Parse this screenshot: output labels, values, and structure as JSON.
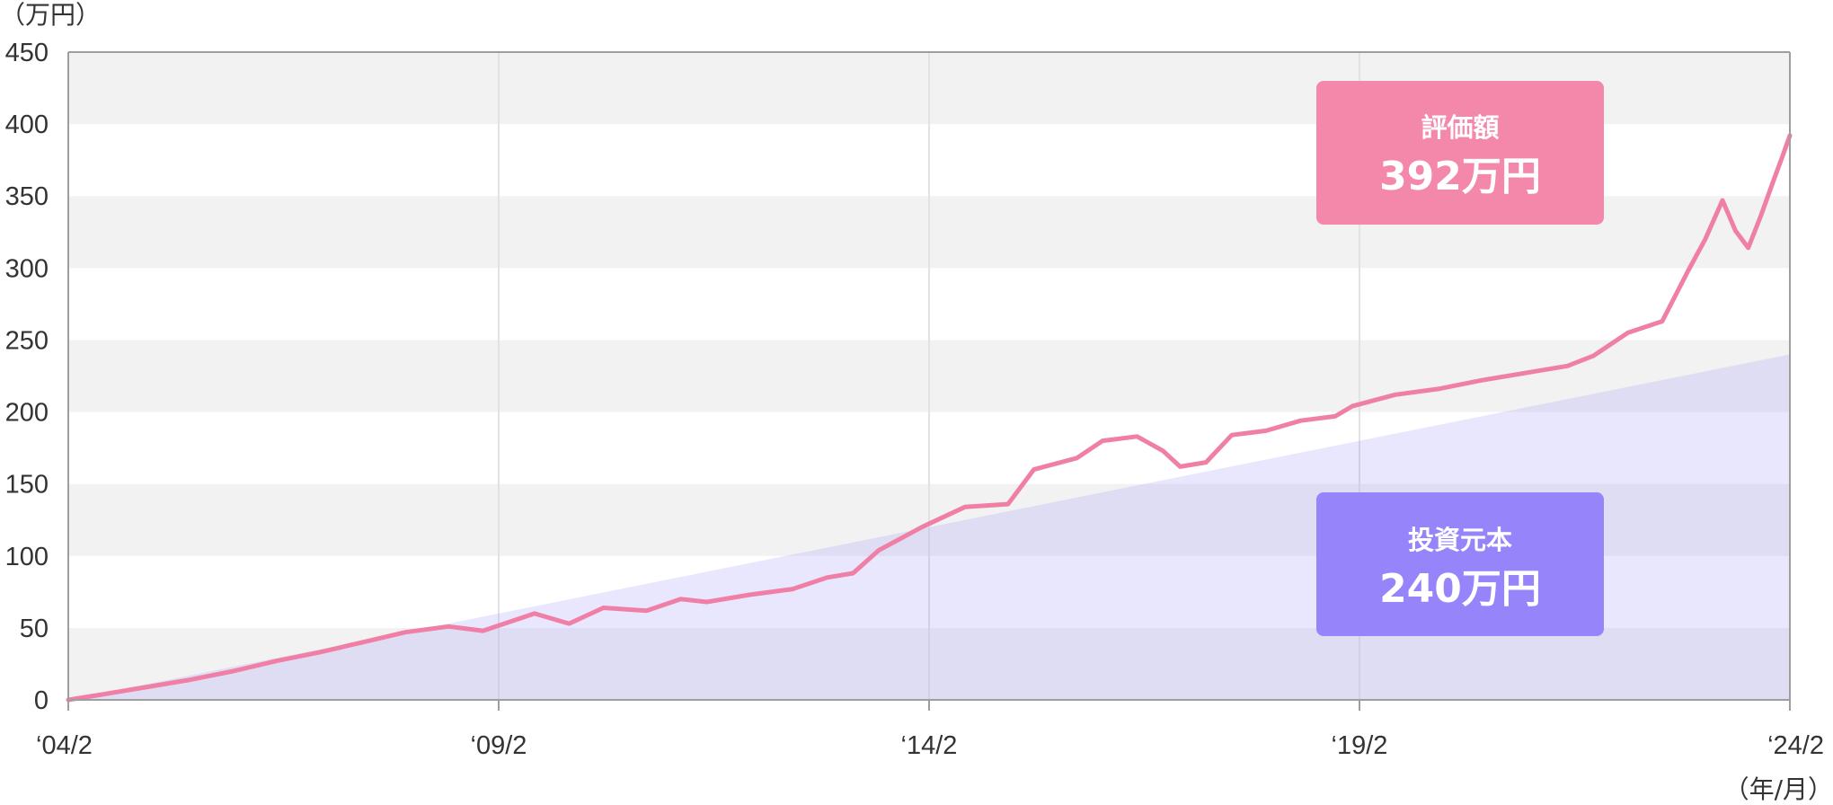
{
  "chart_data": {
    "type": "area",
    "y_unit_label": "（万円）",
    "x_unit_label": "（年/月）",
    "x_tick_labels": [
      "‘04/2",
      "‘09/2",
      "‘14/2",
      "‘19/2",
      "‘24/2"
    ],
    "y_ticks": [
      0,
      50,
      100,
      150,
      200,
      250,
      300,
      350,
      400,
      450
    ],
    "xlim": [
      2004.083,
      2024.083
    ],
    "ylim": [
      0,
      450
    ],
    "series": [
      {
        "key": "principal",
        "color": "#9d92f7",
        "fill": "rgba(157,146,247,0.22)",
        "points": [
          [
            2004.083,
            0
          ],
          [
            2024.083,
            240
          ]
        ]
      },
      {
        "key": "valuation",
        "color": "#f07fa6",
        "points": [
          [
            2004.083,
            0
          ],
          [
            2004.5,
            4
          ],
          [
            2005.0,
            9
          ],
          [
            2005.5,
            14
          ],
          [
            2006.0,
            20
          ],
          [
            2006.5,
            27
          ],
          [
            2007.0,
            33
          ],
          [
            2007.5,
            40
          ],
          [
            2008.0,
            47
          ],
          [
            2008.5,
            51
          ],
          [
            2008.9,
            48
          ],
          [
            2009.5,
            60
          ],
          [
            2009.9,
            53
          ],
          [
            2010.3,
            64
          ],
          [
            2010.8,
            62
          ],
          [
            2011.2,
            70
          ],
          [
            2011.5,
            68
          ],
          [
            2012.0,
            73
          ],
          [
            2012.5,
            77
          ],
          [
            2012.9,
            85
          ],
          [
            2013.2,
            88
          ],
          [
            2013.5,
            104
          ],
          [
            2014.0,
            120
          ],
          [
            2014.5,
            134
          ],
          [
            2015.0,
            136
          ],
          [
            2015.3,
            160
          ],
          [
            2015.8,
            168
          ],
          [
            2016.1,
            180
          ],
          [
            2016.5,
            183
          ],
          [
            2016.8,
            173
          ],
          [
            2017.0,
            162
          ],
          [
            2017.3,
            165
          ],
          [
            2017.6,
            184
          ],
          [
            2018.0,
            187
          ],
          [
            2018.4,
            194
          ],
          [
            2018.8,
            197
          ],
          [
            2019.0,
            204
          ],
          [
            2019.5,
            212
          ],
          [
            2020.0,
            216
          ],
          [
            2020.5,
            222
          ],
          [
            2021.0,
            227
          ],
          [
            2021.5,
            232
          ],
          [
            2021.8,
            239
          ],
          [
            2022.2,
            255
          ],
          [
            2022.6,
            263
          ],
          [
            2022.9,
            298
          ],
          [
            2023.1,
            320
          ],
          [
            2023.3,
            347
          ],
          [
            2023.45,
            326
          ],
          [
            2023.6,
            314
          ],
          [
            2023.75,
            337
          ],
          [
            2023.9,
            362
          ],
          [
            2024.0,
            378
          ],
          [
            2024.083,
            392
          ]
        ]
      }
    ],
    "labels": {
      "valuation": {
        "title": "評価額",
        "value": "392万円"
      },
      "principal": {
        "title": "投資元本",
        "value": "240万円"
      }
    }
  }
}
